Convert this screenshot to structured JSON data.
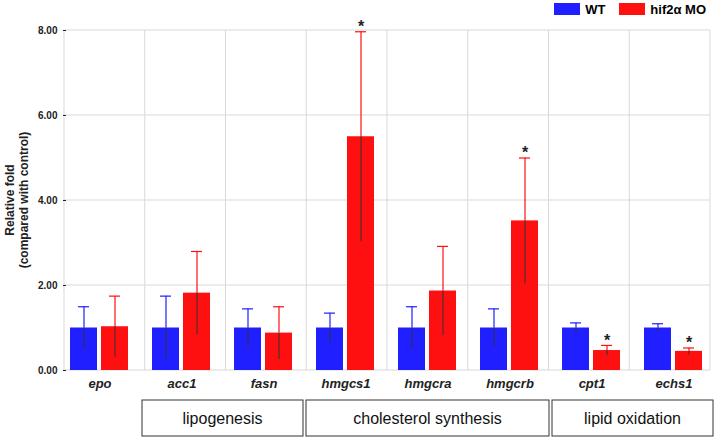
{
  "chart_data": {
    "type": "bar",
    "y_label": "Relative fold\n(compared with control)",
    "categories": [
      "epo",
      "acc1",
      "fasn",
      "hmgcs1",
      "hmgcra",
      "hmgcrb",
      "cpt1",
      "echs1"
    ],
    "series": [
      {
        "name": "WT",
        "color": "#1f1fff",
        "values": [
          1.0,
          1.0,
          1.0,
          1.0,
          1.0,
          1.0,
          1.0,
          1.0
        ],
        "errors": [
          0.5,
          0.75,
          0.45,
          0.35,
          0.5,
          0.45,
          0.12,
          0.1
        ]
      },
      {
        "name": "hif2α MO",
        "color": "#ff1010",
        "values": [
          1.03,
          1.82,
          0.88,
          5.5,
          1.87,
          3.52,
          0.47,
          0.45
        ],
        "errors": [
          0.72,
          0.98,
          0.62,
          2.47,
          1.05,
          1.48,
          0.12,
          0.08
        ]
      }
    ],
    "annotations": [
      {
        "category": "hmgcs1",
        "series": "hif2α MO",
        "text": "*"
      },
      {
        "category": "hmgcrb",
        "series": "hif2α MO",
        "text": "*"
      },
      {
        "category": "cpt1",
        "series": "hif2α MO",
        "text": "*"
      },
      {
        "category": "echs1",
        "series": "hif2α MO",
        "text": "*"
      }
    ],
    "groups": [
      {
        "label": "lipogenesis",
        "categories": [
          "acc1",
          "fasn"
        ]
      },
      {
        "label": "cholesterol synthesis",
        "categories": [
          "hmgcs1",
          "hmgcra",
          "hmgcrb"
        ]
      },
      {
        "label": "lipid oxidation",
        "categories": [
          "cpt1",
          "echs1"
        ]
      }
    ],
    "ylim": [
      0,
      8
    ],
    "yticks": [
      {
        "value": 0,
        "label": "0.00"
      },
      {
        "value": 2,
        "label": "2.00"
      },
      {
        "value": 4,
        "label": "4.00"
      },
      {
        "value": 6,
        "label": "6.00"
      },
      {
        "value": 8,
        "label": "8.00"
      }
    ],
    "grid": true,
    "legend": "top-right"
  }
}
